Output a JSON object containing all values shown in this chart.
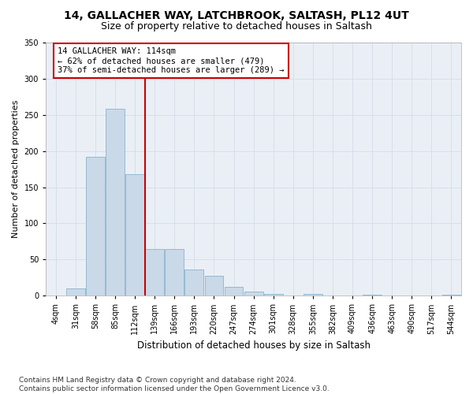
{
  "title1": "14, GALLACHER WAY, LATCHBROOK, SALTASH, PL12 4UT",
  "title2": "Size of property relative to detached houses in Saltash",
  "xlabel": "Distribution of detached houses by size in Saltash",
  "ylabel": "Number of detached properties",
  "footnote": "Contains HM Land Registry data © Crown copyright and database right 2024.\nContains public sector information licensed under the Open Government Licence v3.0.",
  "bin_labels": [
    "4sqm",
    "31sqm",
    "58sqm",
    "85sqm",
    "112sqm",
    "139sqm",
    "166sqm",
    "193sqm",
    "220sqm",
    "247sqm",
    "274sqm",
    "301sqm",
    "328sqm",
    "355sqm",
    "382sqm",
    "409sqm",
    "436sqm",
    "463sqm",
    "490sqm",
    "517sqm",
    "544sqm"
  ],
  "bar_heights": [
    0,
    10,
    192,
    258,
    168,
    65,
    65,
    36,
    28,
    12,
    6,
    2,
    0,
    3,
    0,
    0,
    1,
    0,
    0,
    0,
    1
  ],
  "bar_color": "#c9d9e8",
  "bar_edge_color": "#7aaac8",
  "vline_color": "#cc0000",
  "vline_pos": 4.5,
  "annotation_text": "14 GALLACHER WAY: 114sqm\n← 62% of detached houses are smaller (479)\n37% of semi-detached houses are larger (289) →",
  "annotation_box_color": "#ffffff",
  "annotation_box_edge": "#cc0000",
  "ylim": [
    0,
    350
  ],
  "grid_color": "#d4dde8",
  "bg_color": "#eaeff5",
  "title1_fontsize": 10,
  "title2_fontsize": 9,
  "xlabel_fontsize": 8.5,
  "ylabel_fontsize": 8,
  "tick_fontsize": 7,
  "footnote_fontsize": 6.5,
  "annotation_fontsize": 7.5
}
